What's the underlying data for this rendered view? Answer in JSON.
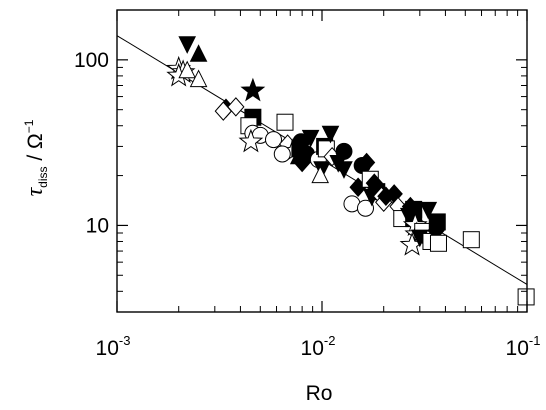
{
  "chart_data": {
    "type": "scatter",
    "xlabel": "Ro",
    "ylabel": {
      "main": "τ",
      "sub": "diss",
      "unit": " / Ω",
      "sup": "−1"
    },
    "xscale": "log",
    "yscale": "log",
    "xlim": [
      0.001,
      0.1
    ],
    "ylim": [
      3.0,
      200
    ],
    "x_ticks": [
      {
        "value": 0.001,
        "base": "10",
        "exp": "-3"
      },
      {
        "value": 0.01,
        "base": "10",
        "exp": "-2"
      },
      {
        "value": 0.1,
        "base": "10",
        "exp": "-1"
      }
    ],
    "y_ticks": [
      {
        "value": 10,
        "label": "10"
      },
      {
        "value": 100,
        "label": "100"
      }
    ],
    "fit_line": {
      "x": [
        0.001,
        0.1
      ],
      "y": [
        140,
        4.4
      ]
    },
    "legend": "none",
    "grid": false,
    "points": [
      {
        "x": 0.0022,
        "y": 125,
        "marker": "triangle-down",
        "filled": true
      },
      {
        "x": 0.0025,
        "y": 108,
        "marker": "triangle-up",
        "filled": true
      },
      {
        "x": 0.002,
        "y": 88,
        "marker": "star",
        "filled": false
      },
      {
        "x": 0.0021,
        "y": 84,
        "marker": "star",
        "filled": false
      },
      {
        "x": 0.002,
        "y": 80,
        "marker": "star",
        "filled": false
      },
      {
        "x": 0.0022,
        "y": 86,
        "marker": "triangle-up",
        "filled": false
      },
      {
        "x": 0.0025,
        "y": 76,
        "marker": "triangle-up",
        "filled": false
      },
      {
        "x": 0.0046,
        "y": 65,
        "marker": "star",
        "filled": true
      },
      {
        "x": 0.0034,
        "y": 51,
        "marker": "diamond",
        "filled": true
      },
      {
        "x": 0.0033,
        "y": 49,
        "marker": "diamond",
        "filled": false
      },
      {
        "x": 0.0038,
        "y": 52,
        "marker": "diamond",
        "filled": false
      },
      {
        "x": 0.0046,
        "y": 45,
        "marker": "square",
        "filled": true
      },
      {
        "x": 0.0044,
        "y": 40,
        "marker": "square",
        "filled": false
      },
      {
        "x": 0.0066,
        "y": 42,
        "marker": "square",
        "filled": false
      },
      {
        "x": 0.0046,
        "y": 36,
        "marker": "circle",
        "filled": false
      },
      {
        "x": 0.005,
        "y": 35,
        "marker": "circle",
        "filled": false
      },
      {
        "x": 0.0058,
        "y": 33,
        "marker": "circle",
        "filled": false
      },
      {
        "x": 0.0045,
        "y": 32,
        "marker": "star",
        "filled": false
      },
      {
        "x": 0.0068,
        "y": 31,
        "marker": "diamond",
        "filled": false
      },
      {
        "x": 0.0072,
        "y": 28,
        "marker": "star",
        "filled": false
      },
      {
        "x": 0.0064,
        "y": 27,
        "marker": "circle",
        "filled": false
      },
      {
        "x": 0.0079,
        "y": 32,
        "marker": "circle",
        "filled": true
      },
      {
        "x": 0.0078,
        "y": 29,
        "marker": "square",
        "filled": true
      },
      {
        "x": 0.0077,
        "y": 26,
        "marker": "triangle-up",
        "filled": true
      },
      {
        "x": 0.0084,
        "y": 27,
        "marker": "circle",
        "filled": true
      },
      {
        "x": 0.008,
        "y": 24,
        "marker": "diamond",
        "filled": true
      },
      {
        "x": 0.0088,
        "y": 34,
        "marker": "triangle-down",
        "filled": true
      },
      {
        "x": 0.0096,
        "y": 25,
        "marker": "circle",
        "filled": false
      },
      {
        "x": 0.01,
        "y": 22,
        "marker": "triangle-down",
        "filled": true
      },
      {
        "x": 0.0098,
        "y": 20,
        "marker": "triangle-up",
        "filled": false
      },
      {
        "x": 0.0103,
        "y": 30,
        "marker": "square",
        "filled": true
      },
      {
        "x": 0.0105,
        "y": 29,
        "marker": "square",
        "filled": false
      },
      {
        "x": 0.011,
        "y": 36,
        "marker": "triangle-down",
        "filled": true
      },
      {
        "x": 0.0112,
        "y": 26,
        "marker": "diamond",
        "filled": false
      },
      {
        "x": 0.012,
        "y": 24,
        "marker": "triangle-down",
        "filled": true
      },
      {
        "x": 0.0128,
        "y": 28,
        "marker": "circle",
        "filled": true
      },
      {
        "x": 0.0128,
        "y": 22,
        "marker": "triangle-down",
        "filled": true
      },
      {
        "x": 0.014,
        "y": 13.5,
        "marker": "circle",
        "filled": false
      },
      {
        "x": 0.0157,
        "y": 23,
        "marker": "circle",
        "filled": true
      },
      {
        "x": 0.015,
        "y": 17,
        "marker": "diamond",
        "filled": true
      },
      {
        "x": 0.0163,
        "y": 12.7,
        "marker": "circle",
        "filled": false
      },
      {
        "x": 0.0165,
        "y": 24,
        "marker": "diamond",
        "filled": true
      },
      {
        "x": 0.0172,
        "y": 19,
        "marker": "square",
        "filled": false
      },
      {
        "x": 0.0175,
        "y": 15,
        "marker": "triangle-down",
        "filled": true
      },
      {
        "x": 0.018,
        "y": 18,
        "marker": "diamond",
        "filled": true
      },
      {
        "x": 0.0185,
        "y": 16,
        "marker": "square",
        "filled": true
      },
      {
        "x": 0.0195,
        "y": 15,
        "marker": "diamond",
        "filled": false
      },
      {
        "x": 0.02,
        "y": 13.8,
        "marker": "diamond",
        "filled": false
      },
      {
        "x": 0.0205,
        "y": 15,
        "marker": "diamond",
        "filled": true
      },
      {
        "x": 0.0225,
        "y": 15.5,
        "marker": "diamond",
        "filled": true
      },
      {
        "x": 0.0235,
        "y": 13,
        "marker": "diamond",
        "filled": false
      },
      {
        "x": 0.0245,
        "y": 11,
        "marker": "square",
        "filled": false
      },
      {
        "x": 0.0265,
        "y": 11.5,
        "marker": "triangle-down",
        "filled": true
      },
      {
        "x": 0.027,
        "y": 13,
        "marker": "diamond",
        "filled": true
      },
      {
        "x": 0.028,
        "y": 12.5,
        "marker": "square",
        "filled": true
      },
      {
        "x": 0.028,
        "y": 11,
        "marker": "square",
        "filled": true
      },
      {
        "x": 0.0285,
        "y": 10,
        "marker": "star",
        "filled": false
      },
      {
        "x": 0.029,
        "y": 8.8,
        "marker": "star",
        "filled": false
      },
      {
        "x": 0.0275,
        "y": 7.6,
        "marker": "star",
        "filled": false
      },
      {
        "x": 0.031,
        "y": 9.2,
        "marker": "square",
        "filled": false
      },
      {
        "x": 0.03,
        "y": 8.5,
        "marker": "triangle-down",
        "filled": true
      },
      {
        "x": 0.033,
        "y": 12.5,
        "marker": "triangle-down",
        "filled": true
      },
      {
        "x": 0.034,
        "y": 8.0,
        "marker": "square",
        "filled": false
      },
      {
        "x": 0.0365,
        "y": 10.5,
        "marker": "square",
        "filled": true
      },
      {
        "x": 0.036,
        "y": 9.3,
        "marker": "diamond",
        "filled": true
      },
      {
        "x": 0.037,
        "y": 7.8,
        "marker": "square",
        "filled": false
      },
      {
        "x": 0.0535,
        "y": 8.2,
        "marker": "square",
        "filled": false
      },
      {
        "x": 0.099,
        "y": 3.7,
        "marker": "square",
        "filled": false
      }
    ]
  },
  "colors": {
    "axis": "#000000",
    "marker": "#000000",
    "background": "#ffffff"
  }
}
